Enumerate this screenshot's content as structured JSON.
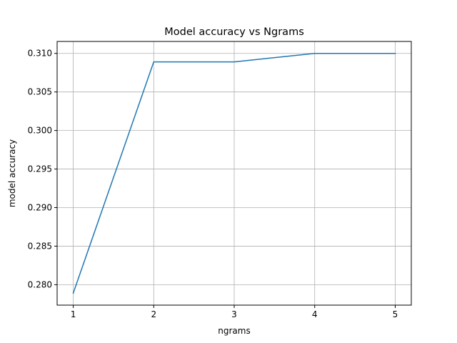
{
  "chart_data": {
    "type": "line",
    "title": "Model accuracy vs Ngrams",
    "xlabel": "ngrams",
    "ylabel": "model accuracy",
    "x": [
      1,
      2,
      3,
      4,
      5
    ],
    "series": [
      {
        "values": [
          0.2789,
          0.3089,
          0.3089,
          0.31,
          0.31
        ],
        "color": "#1f77b4"
      }
    ],
    "xticks": [
      "1",
      "2",
      "3",
      "4",
      "5"
    ],
    "yticks": [
      "0.280",
      "0.285",
      "0.290",
      "0.295",
      "0.300",
      "0.305",
      "0.310"
    ],
    "xlim": [
      0.8,
      5.2
    ],
    "ylim": [
      0.27735,
      0.31155
    ],
    "grid": true
  }
}
